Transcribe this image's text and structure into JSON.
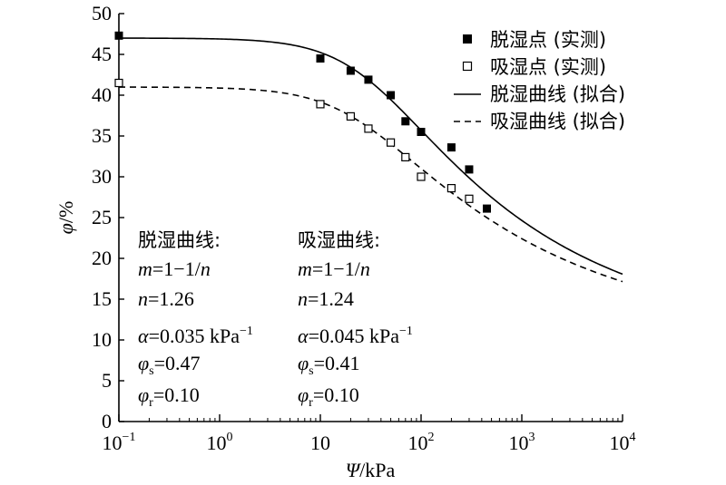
{
  "chart_data": {
    "type": "scatter",
    "xscale": "log",
    "xlim": [
      0.1,
      10000
    ],
    "ylim": [
      0,
      50
    ],
    "x_tick_labels": [
      {
        "base": "10",
        "exp": "−1"
      },
      {
        "base": "10",
        "exp": "0"
      },
      {
        "base": "10",
        "exp": ""
      },
      {
        "base": "10",
        "exp": "2"
      },
      {
        "base": "10",
        "exp": "3"
      },
      {
        "base": "10",
        "exp": "4"
      }
    ],
    "x_tick_values": [
      0.1,
      1,
      10,
      100,
      1000,
      10000
    ],
    "y_ticks": [
      0,
      5,
      10,
      15,
      20,
      25,
      30,
      35,
      40,
      45,
      50
    ],
    "xlabel": {
      "symbol": "Ψ",
      "unit": "/kPa"
    },
    "ylabel": {
      "symbol": "φ",
      "unit": "/%"
    },
    "legend_position": "top-right",
    "series": [
      {
        "name": "脱湿点 (实测)",
        "kind": "points",
        "marker": "filled-square",
        "x": [
          0.1,
          10,
          20,
          30,
          50,
          70,
          100,
          200,
          300,
          450
        ],
        "y": [
          47.3,
          44.5,
          43.0,
          41.9,
          40.0,
          36.8,
          35.5,
          33.6,
          30.9,
          26.1
        ]
      },
      {
        "name": "吸湿点 (实测)",
        "kind": "points",
        "marker": "open-square",
        "x": [
          0.1,
          10,
          20,
          30,
          50,
          70,
          100,
          200,
          300
        ],
        "y": [
          41.5,
          38.9,
          37.4,
          35.9,
          34.2,
          32.4,
          30.0,
          28.6,
          27.3
        ]
      },
      {
        "name": "脱湿曲线 (拟合)",
        "kind": "curve",
        "line": "solid",
        "model": "van-genuchten",
        "alpha": 0.035,
        "n": 1.26,
        "theta_s": 0.47,
        "theta_r": 0.1
      },
      {
        "name": "吸湿曲线 (拟合)",
        "kind": "curve",
        "line": "dashed",
        "model": "van-genuchten",
        "alpha": 0.045,
        "n": 1.24,
        "theta_s": 0.41,
        "theta_r": 0.1
      }
    ],
    "annotations": [
      {
        "title": "脱湿曲线:",
        "lines": {
          "m": {
            "sym": "m",
            "rest": "=1−1/",
            "sym2": "n"
          },
          "n": {
            "sym": "n",
            "rest": "=1.26"
          },
          "alpha": {
            "sym": "α",
            "rest": "=0.035 kPa",
            "sup": "−1"
          },
          "phis": {
            "sym": "φ",
            "sub": "s",
            "rest": "=0.47"
          },
          "phir": {
            "sym": "φ",
            "sub": "r",
            "rest": "=0.10"
          }
        }
      },
      {
        "title": "吸湿曲线:",
        "lines": {
          "m": {
            "sym": "m",
            "rest": "=1−1/",
            "sym2": "n"
          },
          "n": {
            "sym": "n",
            "rest": "=1.24"
          },
          "alpha": {
            "sym": "α",
            "rest": "=0.045 kPa",
            "sup": "−1"
          },
          "phis": {
            "sym": "φ",
            "sub": "s",
            "rest": "=0.41"
          },
          "phir": {
            "sym": "φ",
            "sub": "r",
            "rest": "=0.10"
          }
        }
      }
    ]
  }
}
